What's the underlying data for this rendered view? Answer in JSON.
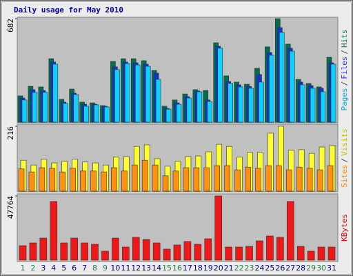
{
  "chart_data": [
    {
      "type": "bar",
      "title": "Daily usage for May 2010",
      "title_color": "#0000a0",
      "ylim": [
        0,
        682
      ],
      "yticks": [
        682
      ],
      "legend_separator": "/",
      "series": [
        {
          "name": "Hits",
          "color": "#006f50",
          "label_color": "#008060",
          "values": [
            173,
            236,
            232,
            418,
            150,
            218,
            132,
            127,
            109,
            400,
            418,
            418,
            405,
            341,
            105,
            146,
            186,
            214,
            209,
            523,
            305,
            264,
            250,
            355,
            496,
            682,
            514,
            282,
            255,
            232,
            427
          ]
        },
        {
          "name": "Files",
          "color": "#1038c8",
          "label_color": "#3030ff",
          "values": [
            159,
            214,
            209,
            396,
            132,
            191,
            118,
            118,
            105,
            364,
            396,
            391,
            382,
            323,
            91,
            127,
            168,
            205,
            146,
            500,
            268,
            246,
            236,
            314,
            459,
            623,
            487,
            264,
            241,
            223,
            391
          ]
        },
        {
          "name": "Pages",
          "color": "#10d0ff",
          "label_color": "#00a8d0",
          "values": [
            146,
            196,
            196,
            382,
            123,
            182,
            105,
            114,
            100,
            346,
            386,
            377,
            368,
            282,
            86,
            118,
            159,
            200,
            136,
            487,
            255,
            232,
            223,
            264,
            441,
            591,
            468,
            246,
            223,
            200,
            382
          ]
        }
      ]
    },
    {
      "type": "bar",
      "ylim": [
        0,
        216
      ],
      "yticks": [
        216
      ],
      "legend_separator": "/",
      "series": [
        {
          "name": "Visits",
          "color": "#ffff30",
          "label_color": "#c0c000",
          "values": [
            103,
            87,
            106,
            94,
            99,
            106,
            97,
            94,
            87,
            113,
            115,
            149,
            154,
            108,
            83,
            99,
            115,
            117,
            131,
            156,
            149,
            113,
            129,
            129,
            193,
            216,
            136,
            138,
            126,
            147,
            152
          ]
        },
        {
          "name": "Sites",
          "color": "#ff9010",
          "label_color": "#ff8000",
          "values": [
            74,
            64,
            78,
            76,
            64,
            76,
            67,
            67,
            64,
            78,
            67,
            87,
            103,
            87,
            51,
            67,
            78,
            78,
            78,
            85,
            85,
            71,
            80,
            76,
            85,
            85,
            71,
            80,
            76,
            71,
            85
          ]
        }
      ]
    },
    {
      "type": "bar",
      "ylim": [
        0,
        47764
      ],
      "yticks": [
        47764
      ],
      "categories": [
        "1",
        "2",
        "3",
        "4",
        "5",
        "6",
        "7",
        "8",
        "9",
        "10",
        "11",
        "12",
        "13",
        "14",
        "15",
        "16",
        "17",
        "18",
        "19",
        "20",
        "21",
        "22",
        "23",
        "24",
        "25",
        "26",
        "27",
        "28",
        "29",
        "30",
        "31"
      ],
      "category_colors": [
        "#208040",
        "#208040",
        "#000080",
        "#000080",
        "#000080",
        "#000080",
        "#000080",
        "#208040",
        "#208040",
        "#000080",
        "#000080",
        "#000080",
        "#000080",
        "#000080",
        "#208040",
        "#208040",
        "#000080",
        "#000080",
        "#000080",
        "#000080",
        "#000080",
        "#208040",
        "#208040",
        "#000080",
        "#000080",
        "#000080",
        "#000080",
        "#000080",
        "#208040",
        "#208040",
        "#000080"
      ],
      "series": [
        {
          "name": "KBytes",
          "color": "#ee1818",
          "label_color": "#e00000",
          "values": [
            10786,
            12840,
            16435,
            43656,
            12840,
            16435,
            12840,
            11813,
            6677,
            16435,
            9758,
            16949,
            15408,
            12840,
            8218,
            11299,
            13867,
            11813,
            15922,
            47764,
            9758,
            9758,
            10272,
            14381,
            17976,
            16949,
            43656,
            10272,
            6677,
            9758,
            9758
          ]
        }
      ]
    }
  ]
}
